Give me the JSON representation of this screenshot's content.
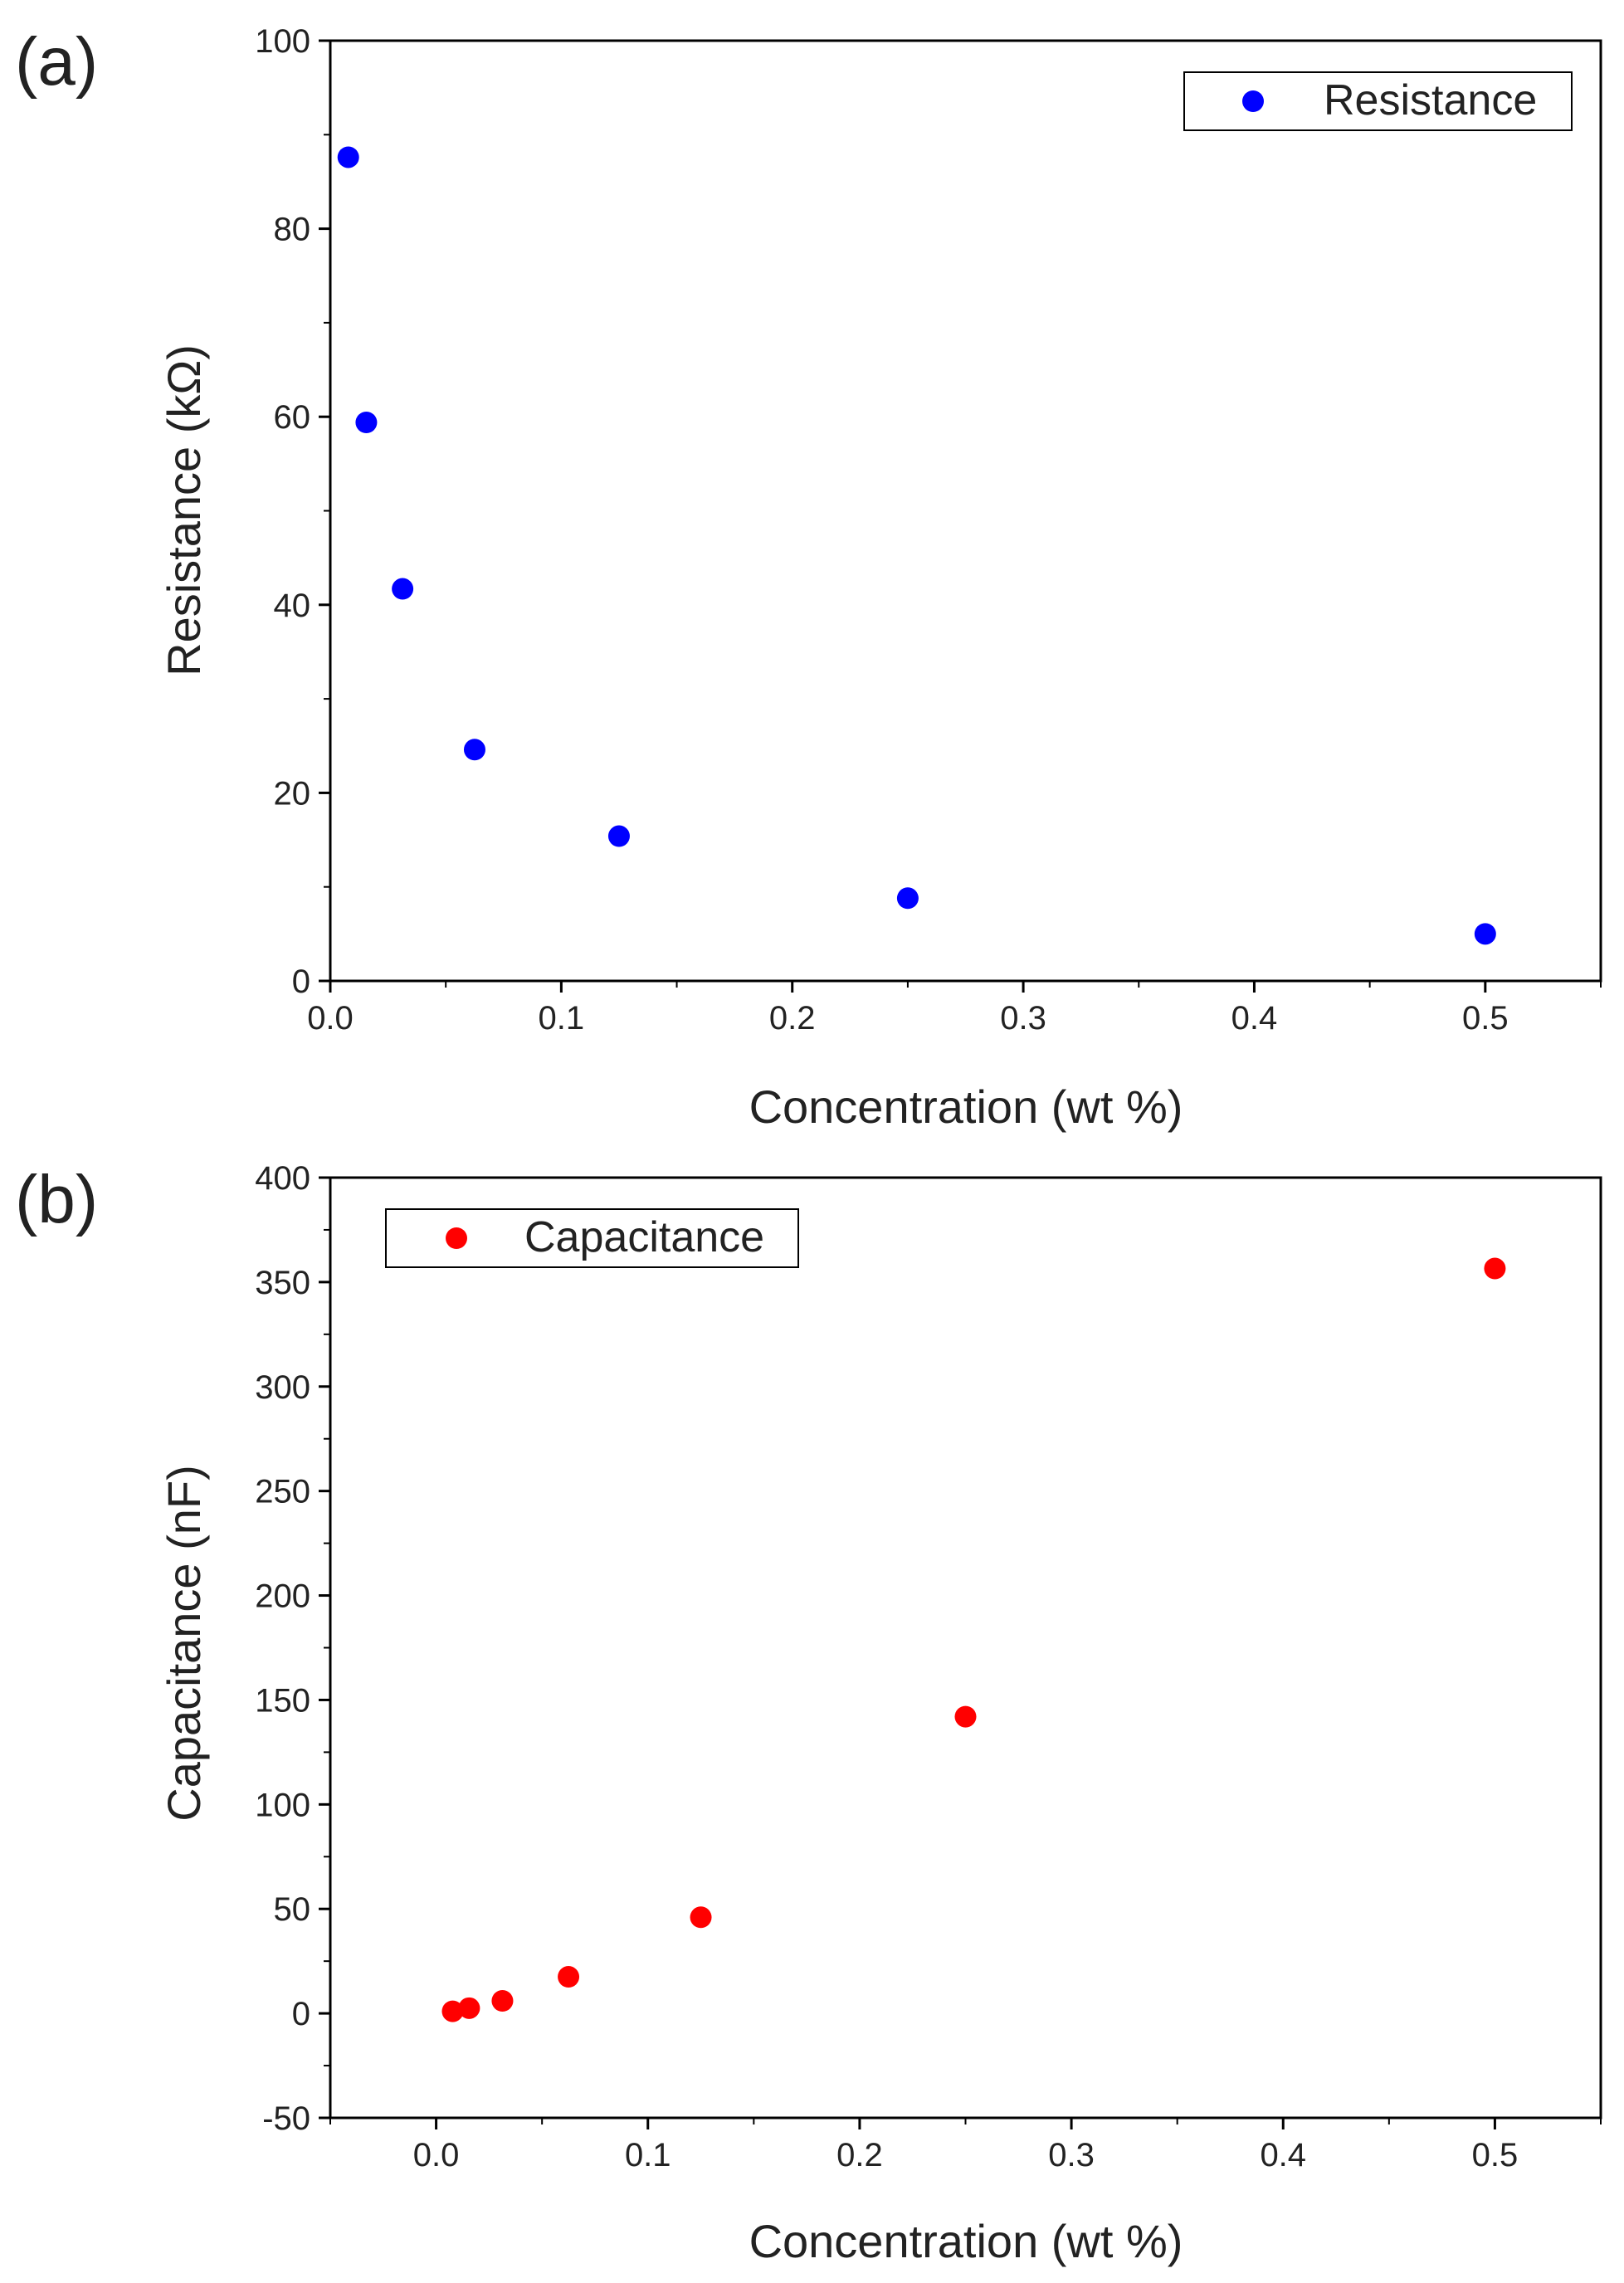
{
  "chart_data": [
    {
      "panel_label": "(a)",
      "type": "scatter",
      "xlabel": "Concentration (wt %)",
      "ylabel": "Resistance (kΩ)",
      "xlim": [
        0,
        0.55
      ],
      "ylim": [
        0,
        100
      ],
      "xticks": [
        0.0,
        0.1,
        0.2,
        0.3,
        0.4,
        0.5
      ],
      "xtick_labels": [
        "0.0",
        "0.1",
        "0.2",
        "0.3",
        "0.4",
        "0.5"
      ],
      "yticks": [
        0,
        20,
        40,
        60,
        80,
        100
      ],
      "ytick_labels": [
        "0",
        "20",
        "40",
        "60",
        "80",
        "100"
      ],
      "grid": false,
      "legend_position": "top-right",
      "series": [
        {
          "name": "Resistance",
          "color": "#0000ff",
          "points": [
            {
              "x": 0.0078,
              "y": 87.6
            },
            {
              "x": 0.0156,
              "y": 59.4
            },
            {
              "x": 0.0313,
              "y": 41.7
            },
            {
              "x": 0.0625,
              "y": 24.6
            },
            {
              "x": 0.125,
              "y": 15.4
            },
            {
              "x": 0.25,
              "y": 8.8
            },
            {
              "x": 0.5,
              "y": 5.0
            }
          ]
        }
      ]
    },
    {
      "panel_label": "(b)",
      "type": "scatter",
      "xlabel": "Concentration (wt %)",
      "ylabel": "Capacitance (nF)",
      "xlim": [
        -0.05,
        0.55
      ],
      "ylim": [
        -50,
        400
      ],
      "xticks": [
        0.0,
        0.1,
        0.2,
        0.3,
        0.4,
        0.5
      ],
      "xtick_labels": [
        "0.0",
        "0.1",
        "0.2",
        "0.3",
        "0.4",
        "0.5"
      ],
      "yticks": [
        -50,
        0,
        50,
        100,
        150,
        200,
        250,
        300,
        350,
        400
      ],
      "ytick_labels": [
        "-50",
        "0",
        "50",
        "100",
        "150",
        "200",
        "250",
        "300",
        "350",
        "400"
      ],
      "grid": false,
      "legend_position": "top-left",
      "series": [
        {
          "name": "Capacitance",
          "color": "#ff0000",
          "points": [
            {
              "x": 0.0078,
              "y": 1.0
            },
            {
              "x": 0.0156,
              "y": 2.5
            },
            {
              "x": 0.0313,
              "y": 6.0
            },
            {
              "x": 0.0625,
              "y": 17.5
            },
            {
              "x": 0.125,
              "y": 46.0
            },
            {
              "x": 0.25,
              "y": 142.0
            },
            {
              "x": 0.5,
              "y": 356.5
            }
          ]
        }
      ]
    }
  ]
}
